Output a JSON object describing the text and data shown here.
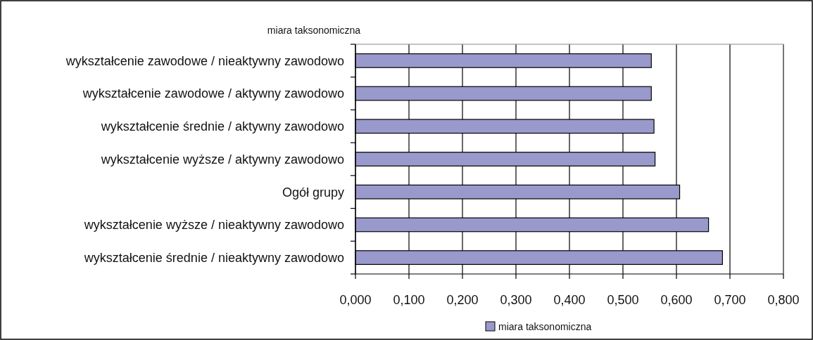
{
  "chart_data": {
    "type": "bar",
    "orientation": "horizontal",
    "title": "miara taksonomiczna",
    "categories": [
      "wykształcenie zawodowe / nieaktywny zawodowo",
      "wykształcenie zawodowe / aktywny zawodowo",
      "wykształcenie średnie / aktywny zawodowo",
      "wykształcenie wyższe / aktywny zawodowo",
      "Ogół grupy",
      "wykształcenie wyższe / nieaktywny zawodowo",
      "wykształcenie średnie / nieaktywny zawodowo"
    ],
    "series": [
      {
        "name": "miara taksonomiczna",
        "color": "#9999cc",
        "values": [
          0.553,
          0.553,
          0.558,
          0.56,
          0.606,
          0.66,
          0.686
        ]
      }
    ],
    "xlim": [
      0,
      0.8
    ],
    "xticks": [
      {
        "value": 0,
        "label": "0,000"
      },
      {
        "value": 0.1,
        "label": "0,100"
      },
      {
        "value": 0.2,
        "label": "0,200"
      },
      {
        "value": 0.3,
        "label": "0,300"
      },
      {
        "value": 0.4,
        "label": "0,400"
      },
      {
        "value": 0.5,
        "label": "0,500"
      },
      {
        "value": 0.6,
        "label": "0,600"
      },
      {
        "value": 0.7,
        "label": "0,700"
      },
      {
        "value": 0.8,
        "label": "0,800"
      }
    ],
    "grid": "x",
    "legend": "bottom"
  }
}
